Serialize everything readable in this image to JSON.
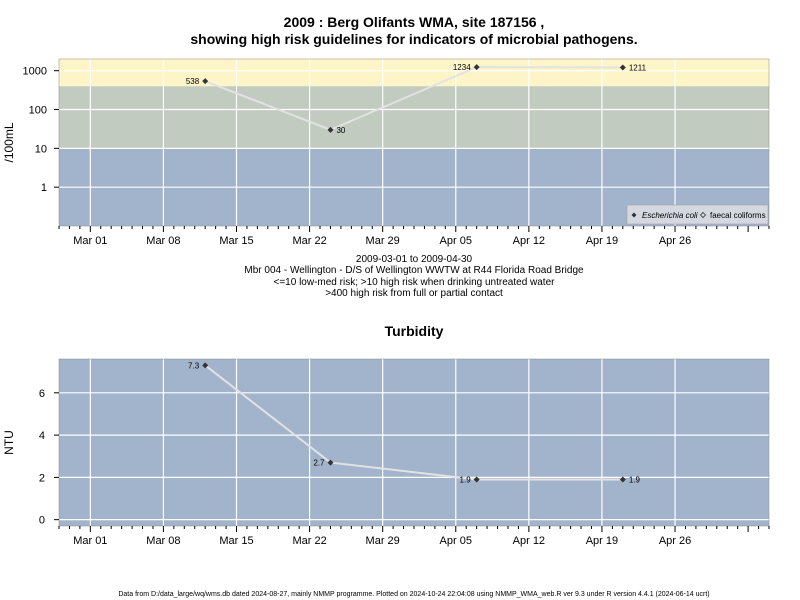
{
  "chart_data": [
    {
      "type": "line",
      "title": "2009 : Berg Olifants WMA, site 187156 ,",
      "subtitle": "showing high risk guidelines for indicators of microbial pathogens.",
      "ylabel": "/100mL",
      "yscale": "log",
      "ylim": [
        0.1,
        2000
      ],
      "xlim": [
        "2009-02-26",
        "2009-05-05"
      ],
      "yticks": [
        {
          "value": 1,
          "label": "1"
        },
        {
          "value": 10,
          "label": "10"
        },
        {
          "value": 100,
          "label": "100"
        },
        {
          "value": 1000,
          "label": "1000"
        }
      ],
      "xticks": [
        {
          "date": "2009-03-01",
          "label": "Mar 01"
        },
        {
          "date": "2009-03-08",
          "label": "Mar 08"
        },
        {
          "date": "2009-03-15",
          "label": "Mar 15"
        },
        {
          "date": "2009-03-22",
          "label": "Mar 22"
        },
        {
          "date": "2009-03-29",
          "label": "Mar 29"
        },
        {
          "date": "2009-04-05",
          "label": "Apr 05"
        },
        {
          "date": "2009-04-12",
          "label": "Apr 12"
        },
        {
          "date": "2009-04-19",
          "label": "Apr 19"
        },
        {
          "date": "2009-04-26",
          "label": "Apr 26"
        }
      ],
      "bands": [
        {
          "from": 0.1,
          "to": 10,
          "color": "#a2b4cc"
        },
        {
          "from": 10,
          "to": 400,
          "color": "#c2cbc0"
        },
        {
          "from": 400,
          "to": 2000,
          "color": "#fdf5c8"
        }
      ],
      "series": [
        {
          "name": "Escherichia coli",
          "marker": "diamond",
          "color": "#333333",
          "points": [
            {
              "date": "2009-03-12",
              "value": 538,
              "label": "538"
            },
            {
              "date": "2009-03-24",
              "value": 30,
              "label": "30"
            },
            {
              "date": "2009-04-07",
              "value": 1234,
              "label": "1234"
            },
            {
              "date": "2009-04-21",
              "value": 1211,
              "label": "1211"
            }
          ]
        },
        {
          "name": "faecal coliforms",
          "marker": "open-diamond",
          "color": "#333333",
          "points": []
        }
      ],
      "legend_position": "bottom-right",
      "captions": [
        "2009-03-01 to 2009-04-30",
        "Mbr 004 - Wellington - D/S of Wellington WWTW at R44 Florida Road Bridge",
        "<=10 low-med risk; >10 high risk when drinking untreated water",
        ">400 high risk from full or partial contact"
      ]
    },
    {
      "type": "line",
      "title": "Turbidity",
      "ylabel": "NTU",
      "ylim": [
        -0.3,
        7.6
      ],
      "xlim": [
        "2009-02-26",
        "2009-05-05"
      ],
      "yticks": [
        {
          "value": 0,
          "label": "0"
        },
        {
          "value": 2,
          "label": "2"
        },
        {
          "value": 4,
          "label": "4"
        },
        {
          "value": 6,
          "label": "6"
        }
      ],
      "xticks": [
        {
          "date": "2009-03-01",
          "label": "Mar 01"
        },
        {
          "date": "2009-03-08",
          "label": "Mar 08"
        },
        {
          "date": "2009-03-15",
          "label": "Mar 15"
        },
        {
          "date": "2009-03-22",
          "label": "Mar 22"
        },
        {
          "date": "2009-03-29",
          "label": "Mar 29"
        },
        {
          "date": "2009-04-05",
          "label": "Apr 05"
        },
        {
          "date": "2009-04-12",
          "label": "Apr 12"
        },
        {
          "date": "2009-04-19",
          "label": "Apr 19"
        },
        {
          "date": "2009-04-26",
          "label": "Apr 26"
        }
      ],
      "background": "#a2b4cc",
      "series": [
        {
          "color": "#333333",
          "points": [
            {
              "date": "2009-03-12",
              "value": 7.3,
              "label": "7.3"
            },
            {
              "date": "2009-03-24",
              "value": 2.7,
              "label": "2.7"
            },
            {
              "date": "2009-04-07",
              "value": 1.9,
              "label": "1.9"
            },
            {
              "date": "2009-04-21",
              "value": 1.9,
              "label": "1.9"
            }
          ]
        }
      ]
    }
  ],
  "footer": "Data from D:/data_large/wq/wms.db dated 2024-08-27, mainly NMMP programme. Plotted on 2024-10-24 22:04:08 using NMMP_WMA_web.R ver 9.3 under R version 4.4.1 (2024-06-14 ucrt)"
}
